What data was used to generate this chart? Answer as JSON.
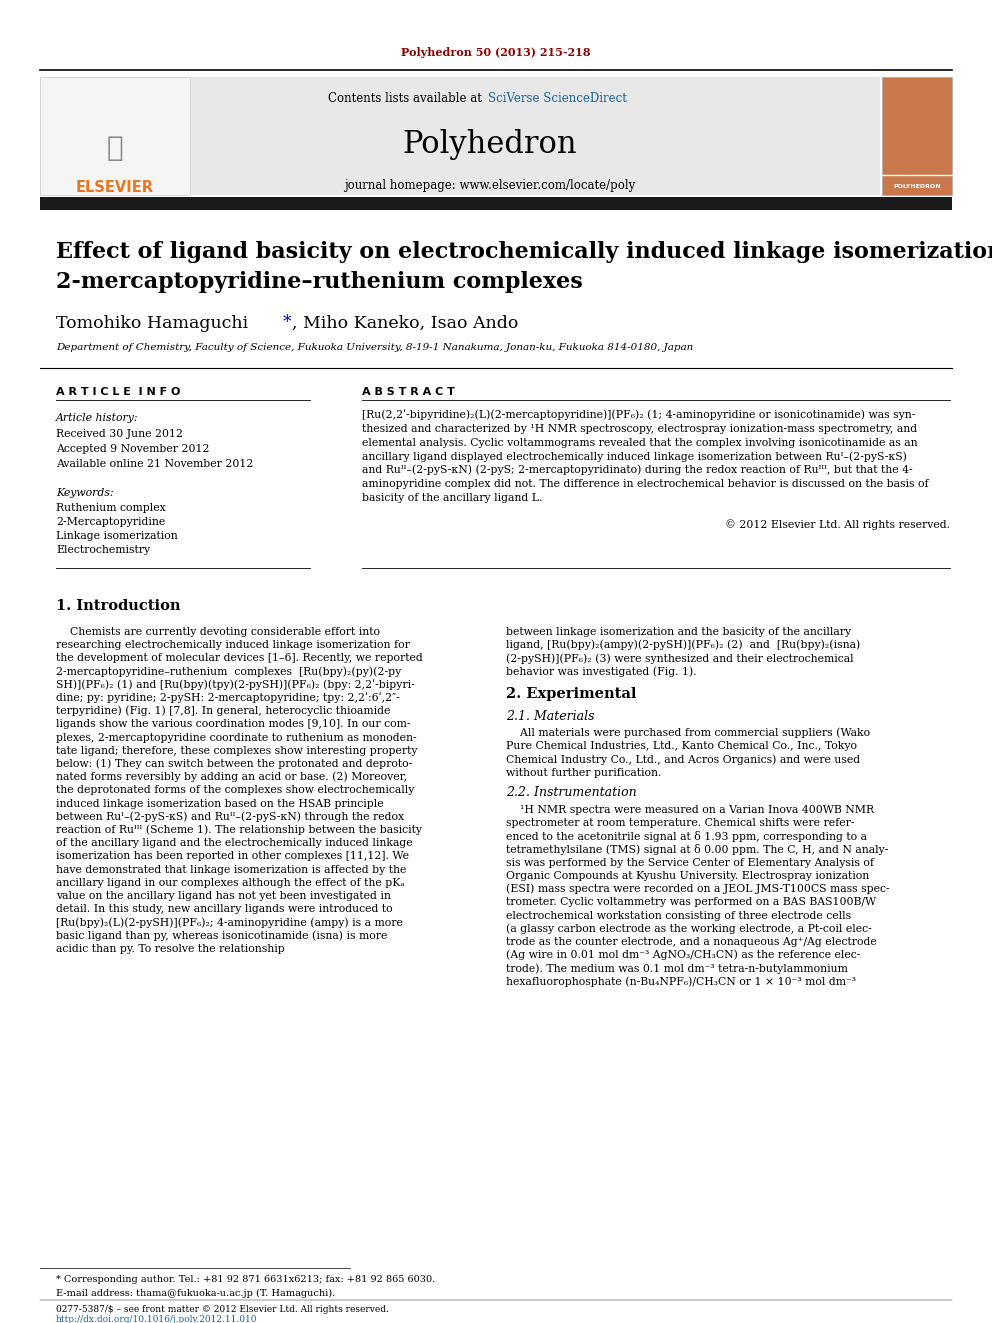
{
  "journal_ref": "Polyhedron 50 (2013) 215-218",
  "journal_name": "Polyhedron",
  "contents_line": "Contents lists available at SciVerse ScienceDirect",
  "journal_homepage": "journal homepage: www.elsevier.com/locate/poly",
  "title_line1": "Effect of ligand basicity on electrochemically induced linkage isomerization in",
  "title_line2": "2-mercaptopyridine–ruthenium complexes",
  "authors": "Tomohiko Hamaguchi *, Miho Kaneko, Isao Ando",
  "affiliation": "Department of Chemistry, Faculty of Science, Fukuoka University, 8-19-1 Nanakuma, Jonan-ku, Fukuoka 814-0180, Japan",
  "section_article_info": "A R T I C L E  I N F O",
  "section_abstract": "A B S T R A C T",
  "article_history_label": "Article history:",
  "received": "Received 30 June 2012",
  "accepted": "Accepted 9 November 2012",
  "available": "Available online 21 November 2012",
  "keywords_label": "Keywords:",
  "keywords": [
    "Ruthenium complex",
    "2-Mercaptopyridine",
    "Linkage isomerization",
    "Electrochemistry"
  ],
  "copyright": "© 2012 Elsevier Ltd. All rights reserved.",
  "section1_title": "1. Introduction",
  "section2_title": "2. Experimental",
  "section21_title": "2.1. Materials",
  "section22_title": "2.2. Instrumentation",
  "footnote_star": "* Corresponding author. Tel.: +81 92 871 6631x6213; fax: +81 92 865 6030.",
  "footnote_email": "E-mail address: thama@fukuoka-u.ac.jp (T. Hamaguchi).",
  "footnote_issn": "0277-5387/$ – see front matter © 2012 Elsevier Ltd. All rights reserved.",
  "footnote_doi": "http://dx.doi.org/10.1016/j.poly.2012.11.010",
  "bg_color": "#ffffff",
  "header_bg": "#e8e8e8",
  "dark_bar_color": "#1a1a1a",
  "elsevier_orange": "#e87722",
  "link_color": "#1a6496",
  "journal_ref_color": "#8b0000",
  "section_bg": "#e8e8e8",
  "abstract_lines": [
    "[Ru(2,2ʹ-bipyridine)₂(L)(2-mercaptopyridine)](PF₆)₂ (1; 4-aminopyridine or isonicotinamide) was syn-",
    "thesized and characterized by ¹H NMR spectroscopy, electrospray ionization-mass spectrometry, and",
    "elemental analysis. Cyclic voltammograms revealed that the complex involving isonicotinamide as an",
    "ancillary ligand displayed electrochemically induced linkage isomerization between Ruᴵ–(2-pyS-κS)",
    "and Ruᴵᴵ–(2-pyS-κN) (2-pyS; 2-mercaptopyridinato) during the redox reaction of Ruᴵᴵᴵ, but that the 4-",
    "aminopyridine complex did not. The difference in electrochemical behavior is discussed on the basis of",
    "basicity of the ancillary ligand L."
  ],
  "intro_left": [
    "    Chemists are currently devoting considerable effort into",
    "researching electrochemically induced linkage isomerization for",
    "the development of molecular devices [1–6]. Recently, we reported",
    "2-mercaptopyridine–ruthenium  complexes  [Ru(bpy)₂(py)(2-py",
    "SH)](PF₆)₂ (1) and [Ru(bpy)(tpy)(2-pySH)](PF₆)₂ (bpy: 2,2ʹ-bipyri-",
    "dine; py: pyridine; 2-pySH: 2-mercaptopyridine; tpy: 2,2ʹ:6ʹ,2″-",
    "terpyridine) (Fig. 1) [7,8]. In general, heterocyclic thioamide",
    "ligands show the various coordination modes [9,10]. In our com-",
    "plexes, 2-mercaptopyridine coordinate to ruthenium as monoden-",
    "tate ligand; therefore, these complexes show interesting property",
    "below: (1) They can switch between the protonated and deproto-",
    "nated forms reversibly by adding an acid or base. (2) Moreover,",
    "the deprotonated forms of the complexes show electrochemically",
    "induced linkage isomerization based on the HSAB principle",
    "between Ruᴵ–(2-pyS-κS) and Ruᴵᴵ–(2-pyS-κN) through the redox",
    "reaction of Ruᴵᴵᴵ (Scheme 1). The relationship between the basicity",
    "of the ancillary ligand and the electrochemically induced linkage",
    "isomerization has been reported in other complexes [11,12]. We",
    "have demonstrated that linkage isomerization is affected by the",
    "ancillary ligand in our complexes although the effect of the pKₐ",
    "value on the ancillary ligand has not yet been investigated in",
    "detail. In this study, new ancillary ligands were introduced to",
    "[Ru(bpy)₂(L)(2-pySH)](PF₆)₂; 4-aminopyridine (ampy) is a more",
    "basic ligand than py, whereas isonicotinamide (isna) is more",
    "acidic than py. To resolve the relationship"
  ],
  "intro_right": [
    "between linkage isomerization and the basicity of the ancillary",
    "ligand, [Ru(bpy)₂(ampy)(2-pySH)](PF₆)₂ (2)  and  [Ru(bpy)₂(isna)",
    "(2-pySH)](PF₆)₂ (3) were synthesized and their electrochemical",
    "behavior was investigated (Fig. 1)."
  ],
  "materials_lines": [
    "    All materials were purchased from commercial suppliers (Wako",
    "Pure Chemical Industries, Ltd., Kanto Chemical Co., Inc., Tokyo",
    "Chemical Industry Co., Ltd., and Acros Organics) and were used",
    "without further purification."
  ],
  "instrumentation_lines": [
    "    ¹H NMR spectra were measured on a Varian Inova 400WB NMR",
    "spectrometer at room temperature. Chemical shifts were refer-",
    "enced to the acetonitrile signal at δ 1.93 ppm, corresponding to a",
    "tetramethylsilane (TMS) signal at δ 0.00 ppm. The C, H, and N analy-",
    "sis was performed by the Service Center of Elementary Analysis of",
    "Organic Compounds at Kyushu University. Electrospray ionization",
    "(ESI) mass spectra were recorded on a JEOL JMS-T100CS mass spec-",
    "trometer. Cyclic voltammetry was performed on a BAS BAS100B/W",
    "electrochemical workstation consisting of three electrode cells",
    "(a glassy carbon electrode as the working electrode, a Pt-coil elec-",
    "trode as the counter electrode, and a nonaqueous Ag⁺/Ag electrode",
    "(Ag wire in 0.01 mol dm⁻³ AgNO₃/CH₃CN) as the reference elec-",
    "trode). The medium was 0.1 mol dm⁻³ tetra-n-butylammonium",
    "hexafluorophosphate (n-Bu₄NPF₆)/CH₃CN or 1 × 10⁻³ mol dm⁻³"
  ]
}
